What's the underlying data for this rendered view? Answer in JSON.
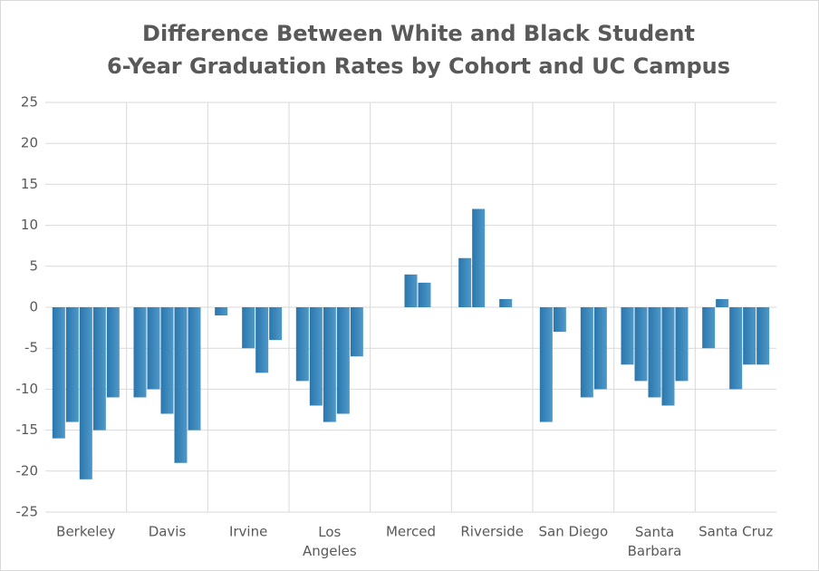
{
  "chart_data": {
    "type": "bar",
    "title": [
      "Difference Between White and Black Student",
      "6-Year Graduation Rates by Cohort and UC Campus"
    ],
    "categories": [
      "Berkeley",
      "Davis",
      "Irvine",
      "Los Angeles",
      "Merced",
      "Riverside",
      "San Diego",
      "Santa Barbara",
      "Santa Cruz"
    ],
    "series": [
      {
        "color": "#2e7bb4",
        "values": [
          -16,
          -11,
          -1,
          -9,
          null,
          6,
          -14,
          -7,
          -5
        ]
      },
      {
        "color": "#2e7bb4",
        "values": [
          -14,
          -10,
          null,
          -12,
          null,
          12,
          -3,
          -9,
          1
        ]
      },
      {
        "color": "#2e7bb4",
        "values": [
          -21,
          -13,
          -5,
          -14,
          4,
          null,
          null,
          -11,
          -10
        ]
      },
      {
        "color": "#2e7bb4",
        "values": [
          -15,
          -19,
          -8,
          -13,
          3,
          1,
          -11,
          -12,
          -7
        ]
      },
      {
        "color": "#2e7bb4",
        "values": [
          -11,
          -15,
          -4,
          -6,
          null,
          null,
          -10,
          -9,
          -7
        ]
      }
    ],
    "ylim": [
      -25,
      25
    ],
    "yticks": [
      -25,
      -20,
      -15,
      -10,
      -5,
      0,
      5,
      10,
      15,
      20,
      25
    ],
    "grid": true
  }
}
